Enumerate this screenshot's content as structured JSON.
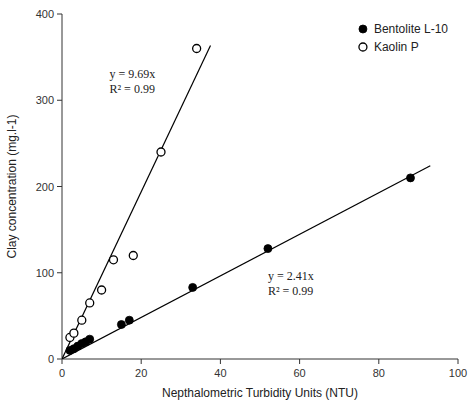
{
  "chart_data": {
    "type": "scatter",
    "x_label": "Nepthalometric Turbidity Units (NTU)",
    "y_label": "Clay concentration (mg.l-1)",
    "xlim": [
      0,
      100
    ],
    "ylim": [
      0,
      400
    ],
    "xticks": [
      0,
      20,
      40,
      60,
      80,
      100
    ],
    "yticks": [
      0,
      100,
      200,
      300,
      400
    ],
    "grid": false,
    "legend": "upper-right",
    "series": [
      {
        "type": "line",
        "color": "#000000",
        "x": [
          0,
          93
        ],
        "values": [
          0,
          224.13
        ]
      },
      {
        "type": "line",
        "color": "#000000",
        "x": [
          0,
          37.5
        ],
        "values": [
          0,
          363.375
        ]
      },
      {
        "name": "Bentolite L-10",
        "type": "scatter",
        "color": "#000000",
        "marker": "circle",
        "x": [
          2,
          3,
          4,
          5,
          6,
          7,
          15,
          17,
          33,
          52,
          88
        ],
        "values": [
          10,
          12,
          15,
          18,
          20,
          23,
          40,
          45,
          83,
          128,
          210
        ]
      },
      {
        "name": "Kaolin P",
        "type": "scatter",
        "color": "#000000",
        "marker": "open-circle",
        "x": [
          2,
          3,
          5,
          7,
          10,
          13,
          18,
          25,
          34
        ],
        "values": [
          25,
          30,
          45,
          65,
          80,
          115,
          120,
          240,
          360
        ]
      }
    ],
    "annotations": [
      {
        "lines": [
          "y = 9.69x",
          "R² = 0.99"
        ],
        "x": 12,
        "y": 340
      },
      {
        "lines": [
          "y = 2.41x",
          "R² = 0.99"
        ],
        "x": 52,
        "y": 105
      }
    ]
  }
}
